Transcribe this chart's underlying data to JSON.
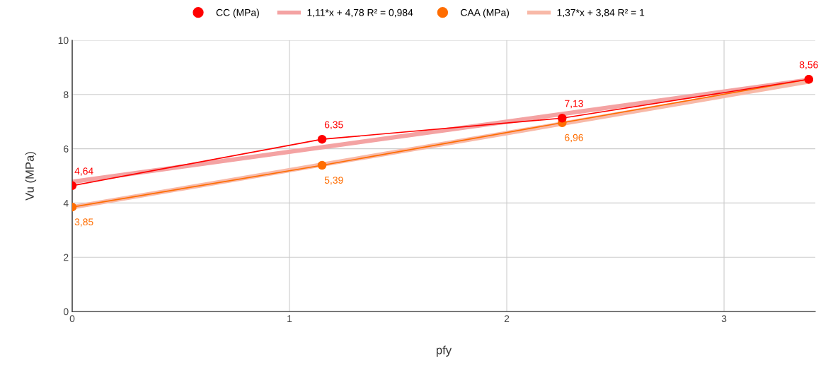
{
  "chart_data": {
    "type": "line",
    "xlabel": "pfy",
    "ylabel": "Vu (MPa)",
    "xlim": [
      0,
      3.42
    ],
    "xticks": [
      0,
      1,
      2,
      3
    ],
    "ylim": [
      0,
      10
    ],
    "yticks": [
      0,
      2,
      4,
      6,
      8,
      10
    ],
    "grid": true,
    "legend": "top",
    "series": [
      {
        "name": "CC (MPa)",
        "color": "#ff0000",
        "marker": "circle",
        "x": [
          0,
          1.15,
          2.255,
          3.39
        ],
        "values": [
          4.64,
          6.35,
          7.13,
          8.56
        ],
        "value_labels": [
          "4,64",
          "6,35",
          "7,13",
          "8,56"
        ]
      },
      {
        "name": "1,11*x + 4,78 R² = 0,984",
        "color": "#f4a3a3",
        "marker": "none",
        "x": [
          0,
          3.39
        ],
        "values": [
          4.78,
          8.54
        ]
      },
      {
        "name": "CAA (MPa)",
        "color": "#ff6d01",
        "marker": "circle",
        "x": [
          0,
          1.15,
          2.255,
          3.39
        ],
        "values": [
          3.85,
          5.39,
          6.96,
          8.56
        ],
        "value_labels": [
          "3,85",
          "5,39",
          "6,96",
          null
        ]
      },
      {
        "name": "1,37*x + 3,84 R² = 1",
        "color": "#f8b9a8",
        "marker": "none",
        "x": [
          0,
          3.39
        ],
        "values": [
          3.84,
          8.48
        ]
      }
    ]
  }
}
